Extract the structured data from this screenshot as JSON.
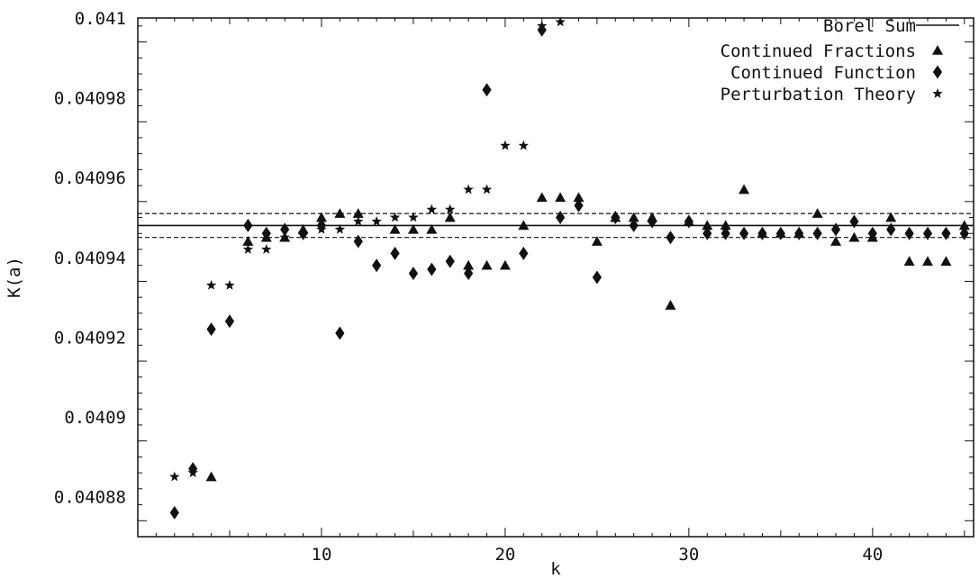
{
  "chart_data": {
    "type": "scatter",
    "title": "",
    "xlabel": "k",
    "ylabel": "K(a)",
    "xlim": [
      0,
      45.5
    ],
    "ylim": [
      0.04087,
      0.041
    ],
    "x_ticks": [
      10,
      20,
      30,
      40
    ],
    "x_tick_labels": [
      "10",
      "20",
      "30",
      "40"
    ],
    "y_ticks": [
      0.04088,
      0.0409,
      0.04092,
      0.04094,
      0.04096,
      0.04098,
      0.041
    ],
    "y_tick_labels": [
      "0.04088",
      "0.0409",
      "0.04092",
      "0.04094",
      "0.04096",
      "0.04098",
      "0.041"
    ],
    "grid": false,
    "legend_position": "top-right",
    "reference_lines": {
      "borel_sum": 0.040948,
      "upper_bound": 0.040951,
      "lower_bound": 0.040945
    },
    "series": [
      {
        "name": "Borel Sum",
        "marker": "line",
        "x": [
          0,
          45.5
        ],
        "y": [
          0.040948,
          0.040948
        ]
      },
      {
        "name": "Continued Fractions",
        "marker": "triangle",
        "x": [
          4,
          6,
          7,
          8,
          9,
          10,
          11,
          12,
          14,
          15,
          16,
          17,
          18,
          19,
          20,
          21,
          22,
          23,
          24,
          25,
          26,
          27,
          28,
          29,
          30,
          31,
          32,
          33,
          34,
          35,
          36,
          37,
          38,
          39,
          40,
          41,
          42,
          43,
          44,
          45
        ],
        "y": [
          0.040885,
          0.040944,
          0.040945,
          0.040945,
          0.040947,
          0.04095,
          0.040951,
          0.040951,
          0.040947,
          0.040947,
          0.040947,
          0.04095,
          0.040938,
          0.040938,
          0.040938,
          0.040948,
          0.040955,
          0.040955,
          0.040955,
          0.040944,
          0.04095,
          0.04095,
          0.04095,
          0.040928,
          0.040949,
          0.040948,
          0.040948,
          0.040957,
          0.040946,
          0.040946,
          0.040946,
          0.040951,
          0.040944,
          0.040945,
          0.040945,
          0.04095,
          0.040939,
          0.040939,
          0.040939,
          0.040948
        ]
      },
      {
        "name": "Continued Function",
        "marker": "diamond",
        "x": [
          2,
          3,
          4,
          5,
          6,
          7,
          8,
          9,
          10,
          11,
          12,
          13,
          14,
          15,
          16,
          17,
          18,
          19,
          21,
          22,
          23,
          24,
          25,
          26,
          27,
          28,
          29,
          30,
          31,
          32,
          33,
          34,
          35,
          36,
          37,
          38,
          39,
          40,
          41,
          42,
          43,
          44,
          45
        ],
        "y": [
          0.040876,
          0.040887,
          0.040922,
          0.040924,
          0.040948,
          0.040946,
          0.040947,
          0.040946,
          0.040948,
          0.040921,
          0.040944,
          0.040938,
          0.040941,
          0.040936,
          0.040937,
          0.040939,
          0.040936,
          0.040982,
          0.040941,
          0.040997,
          0.04095,
          0.040953,
          0.040935,
          0.04095,
          0.040948,
          0.040949,
          0.040945,
          0.040949,
          0.040946,
          0.040946,
          0.040946,
          0.040946,
          0.040946,
          0.040946,
          0.040946,
          0.040947,
          0.040949,
          0.040946,
          0.040947,
          0.040946,
          0.040946,
          0.040946,
          0.040946
        ]
      },
      {
        "name": "Perturbation Theory",
        "marker": "star",
        "x": [
          2,
          3,
          4,
          5,
          6,
          7,
          8,
          9,
          10,
          11,
          12,
          13,
          14,
          15,
          16,
          17,
          18,
          19,
          20,
          21,
          22,
          23
        ],
        "y": [
          0.040885,
          0.040886,
          0.040933,
          0.040933,
          0.040942,
          0.040942,
          0.040945,
          0.040946,
          0.040947,
          0.040947,
          0.040949,
          0.040949,
          0.04095,
          0.04095,
          0.040952,
          0.040952,
          0.040957,
          0.040957,
          0.040968,
          0.040968,
          0.040998,
          0.040999
        ]
      }
    ]
  }
}
